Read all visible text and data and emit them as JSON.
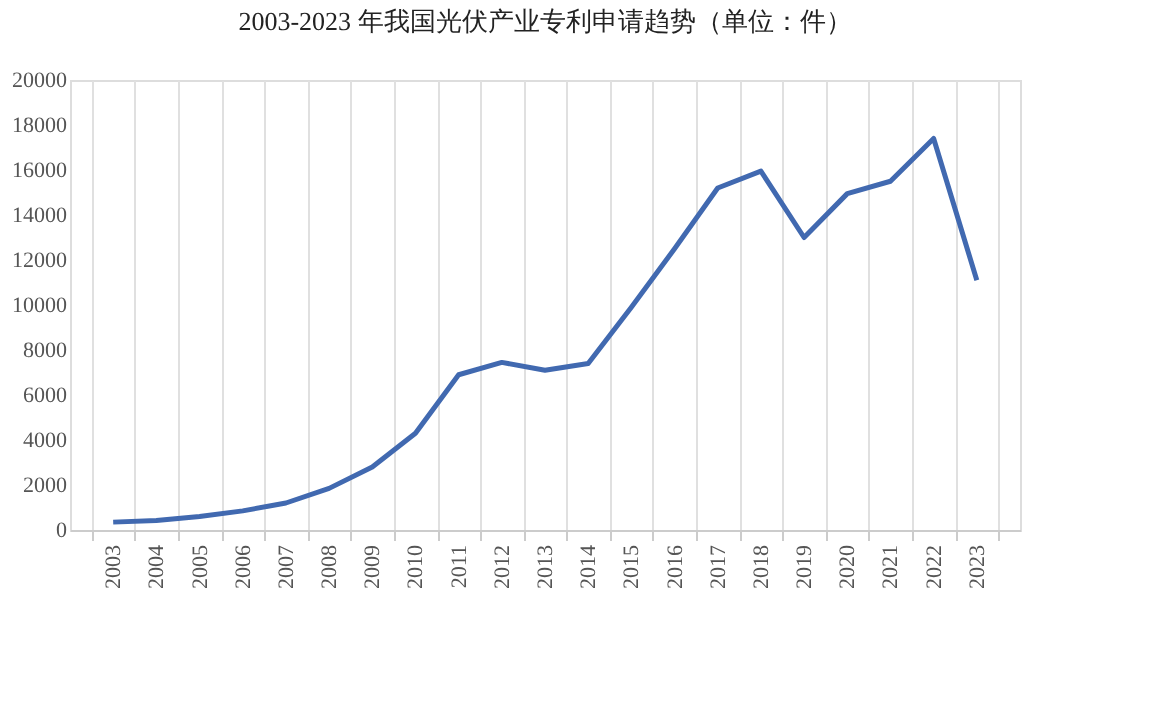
{
  "chart_data": {
    "type": "line",
    "title": "2003-2023 年我国光伏产业专利申请趋势（单位：件）",
    "categories": [
      "2003",
      "2004",
      "2005",
      "2006",
      "2007",
      "2008",
      "2009",
      "2010",
      "2011",
      "2012",
      "2013",
      "2014",
      "2015",
      "2016",
      "2017",
      "2018",
      "2019",
      "2020",
      "2021",
      "2022",
      "2023"
    ],
    "series": [
      {
        "color": "#4169b0",
        "values": [
          350,
          420,
          600,
          850,
          1200,
          1850,
          2800,
          4300,
          6900,
          7450,
          7100,
          7400,
          9900,
          12500,
          15200,
          15950,
          13000,
          14950,
          15500,
          17400,
          11100
        ]
      }
    ],
    "ylim": [
      0,
      20000
    ],
    "yticks": [
      0,
      2000,
      4000,
      6000,
      8000,
      10000,
      12000,
      14000,
      16000,
      18000,
      20000
    ],
    "grid": "x",
    "legend": false,
    "marker": "none",
    "line_style": "solid"
  }
}
